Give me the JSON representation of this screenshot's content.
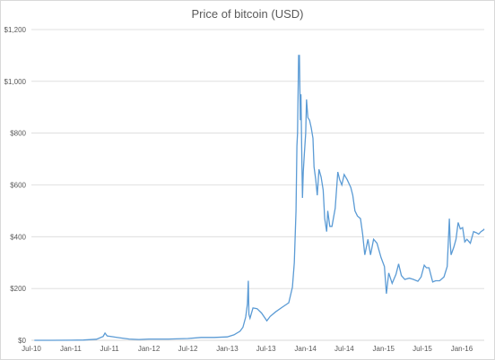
{
  "chart_data": {
    "type": "line",
    "title": "Price of bitcoin (USD)",
    "xlabel": "",
    "ylabel": "",
    "x_tick_labels": [
      "Jul-10",
      "Jan-11",
      "Jul-11",
      "Jan-12",
      "Jul-12",
      "Jan-13",
      "Jul-13",
      "Jan-14",
      "Jul-14",
      "Jan-15",
      "Jul-15",
      "Jan-16"
    ],
    "y_tick_labels": [
      "$0",
      "$200",
      "$400",
      "$600",
      "$800",
      "$1,000",
      "$1,200"
    ],
    "ylim": [
      0,
      1200
    ],
    "xlim": [
      "2010-07-01",
      "2016-04-15"
    ],
    "grid": "horizontal",
    "color": "#5b9bd5",
    "series": [
      {
        "values": [
          [
            "2010-07-15",
            0.1
          ],
          [
            "2010-10-01",
            0.1
          ],
          [
            "2011-01-01",
            0.3
          ],
          [
            "2011-03-01",
            0.9
          ],
          [
            "2011-05-01",
            4
          ],
          [
            "2011-06-01",
            15
          ],
          [
            "2011-06-10",
            28
          ],
          [
            "2011-06-20",
            17
          ],
          [
            "2011-07-15",
            14
          ],
          [
            "2011-08-15",
            10
          ],
          [
            "2011-10-01",
            5
          ],
          [
            "2011-11-15",
            3
          ],
          [
            "2012-01-01",
            5
          ],
          [
            "2012-04-01",
            5
          ],
          [
            "2012-07-01",
            7
          ],
          [
            "2012-09-01",
            11
          ],
          [
            "2012-11-01",
            11
          ],
          [
            "2013-01-01",
            13
          ],
          [
            "2013-02-01",
            21
          ],
          [
            "2013-03-01",
            35
          ],
          [
            "2013-03-15",
            50
          ],
          [
            "2013-03-28",
            90
          ],
          [
            "2013-04-05",
            140
          ],
          [
            "2013-04-09",
            230
          ],
          [
            "2013-04-12",
            100
          ],
          [
            "2013-04-17",
            85
          ],
          [
            "2013-05-01",
            125
          ],
          [
            "2013-05-20",
            122
          ],
          [
            "2013-06-10",
            105
          ],
          [
            "2013-07-05",
            75
          ],
          [
            "2013-07-20",
            92
          ],
          [
            "2013-08-15",
            110
          ],
          [
            "2013-09-15",
            128
          ],
          [
            "2013-10-15",
            145
          ],
          [
            "2013-11-01",
            205
          ],
          [
            "2013-11-10",
            300
          ],
          [
            "2013-11-18",
            500
          ],
          [
            "2013-11-22",
            750
          ],
          [
            "2013-11-25",
            800
          ],
          [
            "2013-11-30",
            1100
          ],
          [
            "2013-12-04",
            1100
          ],
          [
            "2013-12-08",
            850
          ],
          [
            "2013-12-11",
            950
          ],
          [
            "2013-12-15",
            700
          ],
          [
            "2013-12-18",
            550
          ],
          [
            "2013-12-22",
            650
          ],
          [
            "2013-12-27",
            720
          ],
          [
            "2014-01-02",
            800
          ],
          [
            "2014-01-06",
            930
          ],
          [
            "2014-01-12",
            860
          ],
          [
            "2014-01-20",
            850
          ],
          [
            "2014-01-28",
            820
          ],
          [
            "2014-02-05",
            780
          ],
          [
            "2014-02-10",
            670
          ],
          [
            "2014-02-18",
            620
          ],
          [
            "2014-02-25",
            560
          ],
          [
            "2014-03-05",
            660
          ],
          [
            "2014-03-15",
            630
          ],
          [
            "2014-03-25",
            580
          ],
          [
            "2014-04-01",
            470
          ],
          [
            "2014-04-10",
            420
          ],
          [
            "2014-04-15",
            500
          ],
          [
            "2014-04-25",
            440
          ],
          [
            "2014-05-05",
            440
          ],
          [
            "2014-05-20",
            510
          ],
          [
            "2014-06-01",
            650
          ],
          [
            "2014-06-10",
            620
          ],
          [
            "2014-06-20",
            600
          ],
          [
            "2014-07-01",
            640
          ],
          [
            "2014-07-15",
            620
          ],
          [
            "2014-08-01",
            590
          ],
          [
            "2014-08-10",
            560
          ],
          [
            "2014-08-20",
            500
          ],
          [
            "2014-09-01",
            480
          ],
          [
            "2014-09-15",
            470
          ],
          [
            "2014-09-25",
            410
          ],
          [
            "2014-10-05",
            330
          ],
          [
            "2014-10-20",
            390
          ],
          [
            "2014-11-01",
            330
          ],
          [
            "2014-11-15",
            390
          ],
          [
            "2014-12-01",
            375
          ],
          [
            "2014-12-20",
            320
          ],
          [
            "2015-01-05",
            285
          ],
          [
            "2015-01-14",
            180
          ],
          [
            "2015-01-25",
            260
          ],
          [
            "2015-02-10",
            220
          ],
          [
            "2015-02-28",
            255
          ],
          [
            "2015-03-12",
            295
          ],
          [
            "2015-03-25",
            250
          ],
          [
            "2015-04-10",
            235
          ],
          [
            "2015-05-01",
            240
          ],
          [
            "2015-05-20",
            235
          ],
          [
            "2015-06-10",
            228
          ],
          [
            "2015-06-25",
            245
          ],
          [
            "2015-07-10",
            290
          ],
          [
            "2015-07-20",
            280
          ],
          [
            "2015-08-01",
            280
          ],
          [
            "2015-08-18",
            225
          ],
          [
            "2015-09-01",
            230
          ],
          [
            "2015-09-20",
            230
          ],
          [
            "2015-10-10",
            245
          ],
          [
            "2015-10-25",
            285
          ],
          [
            "2015-11-04",
            470
          ],
          [
            "2015-11-08",
            380
          ],
          [
            "2015-11-12",
            330
          ],
          [
            "2015-11-25",
            360
          ],
          [
            "2015-12-05",
            390
          ],
          [
            "2015-12-15",
            455
          ],
          [
            "2015-12-25",
            430
          ],
          [
            "2016-01-05",
            435
          ],
          [
            "2016-01-15",
            380
          ],
          [
            "2016-01-25",
            390
          ],
          [
            "2016-02-10",
            375
          ],
          [
            "2016-02-25",
            420
          ],
          [
            "2016-03-10",
            415
          ],
          [
            "2016-03-20",
            410
          ],
          [
            "2016-03-31",
            420
          ],
          [
            "2016-04-10",
            425
          ],
          [
            "2016-04-15",
            430
          ]
        ]
      }
    ]
  }
}
